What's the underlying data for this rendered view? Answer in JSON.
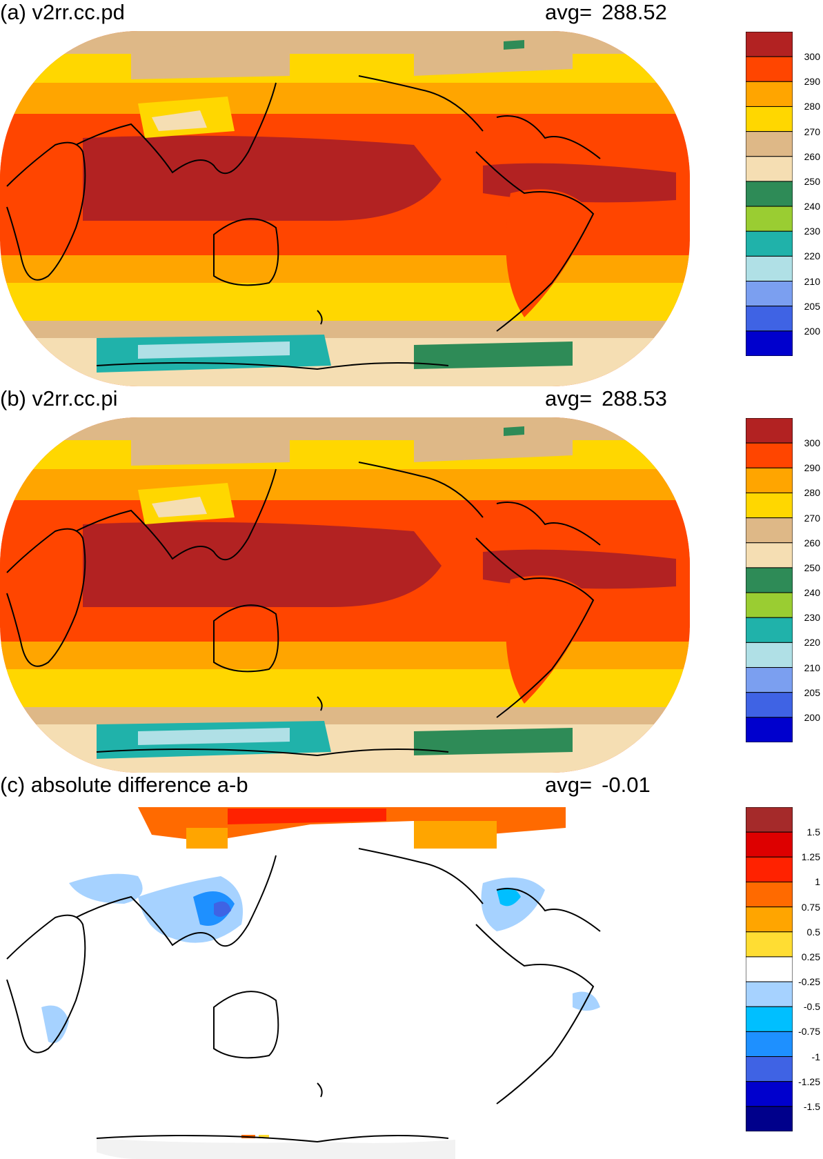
{
  "panels": [
    {
      "title": "(a) v2rr.cc.pd",
      "avg_label": "avg=",
      "avg_value": "288.52",
      "colorbar": {
        "labels": [
          "300",
          "290",
          "280",
          "270",
          "260",
          "250",
          "240",
          "230",
          "220",
          "210",
          "205",
          "200"
        ],
        "colors": [
          "#b22222",
          "#ff4500",
          "#ffa500",
          "#ffd700",
          "#deb887",
          "#f5deb3",
          "#2e8b57",
          "#9acd32",
          "#20b2aa",
          "#b0e0e6",
          "#7b9ff0",
          "#3f63e4",
          "#0000cd"
        ]
      }
    },
    {
      "title": "(b) v2rr.cc.pi",
      "avg_label": "avg=",
      "avg_value": "288.53",
      "colorbar": {
        "labels": [
          "300",
          "290",
          "280",
          "270",
          "260",
          "250",
          "240",
          "230",
          "220",
          "210",
          "205",
          "200"
        ],
        "colors": [
          "#b22222",
          "#ff4500",
          "#ffa500",
          "#ffd700",
          "#deb887",
          "#f5deb3",
          "#2e8b57",
          "#9acd32",
          "#20b2aa",
          "#b0e0e6",
          "#7b9ff0",
          "#3f63e4",
          "#0000cd"
        ]
      }
    },
    {
      "title": "(c) absolute difference a-b",
      "avg_label": "avg=",
      "avg_value": "-0.01",
      "colorbar": {
        "labels": [
          "1.5",
          "1.25",
          "1",
          "0.75",
          "0.5",
          "0.25",
          "-0.25",
          "-0.5",
          "-0.75",
          "-1",
          "-1.25",
          "-1.5"
        ],
        "colors": [
          "#a52a2a",
          "#dd0000",
          "#ff2200",
          "#ff6a00",
          "#ffa500",
          "#ffdd33",
          "#ffffff",
          "#a6d2ff",
          "#00bfff",
          "#1e90ff",
          "#3f63e4",
          "#0000cd",
          "#00008b"
        ]
      }
    }
  ],
  "map_colors": {
    "coast": "#000000",
    "ocean_outline": "#ffffff"
  }
}
